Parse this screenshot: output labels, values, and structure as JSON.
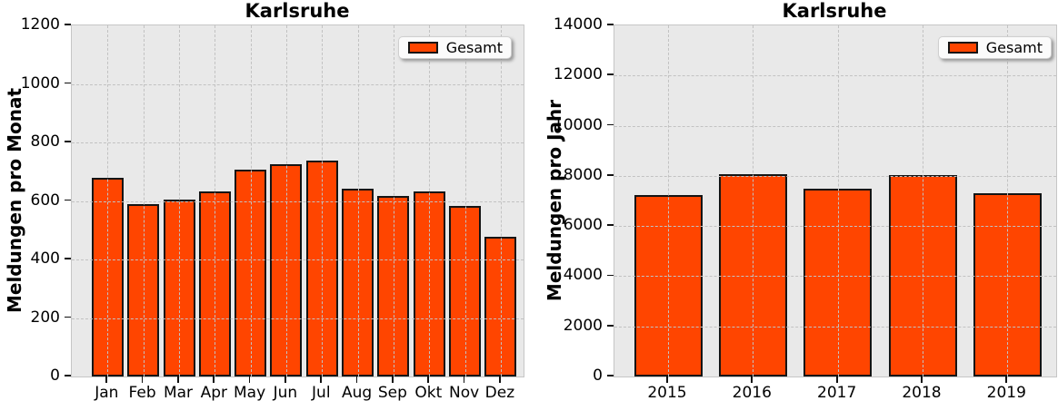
{
  "figure_title": "Karlsruhe",
  "colors": {
    "bar_fill": "#ff4500",
    "bar_edge": "#141414",
    "plot_background": "#e9e9e9",
    "grid": "#c2c2c2",
    "spine": "#c6c6c6",
    "text": "#000000",
    "legend_background": "#fbfbfb"
  },
  "chart_data": [
    {
      "type": "bar",
      "title": "Karlsruhe",
      "xlabel": "",
      "ylabel": "Meldungen pro Monat",
      "categories": [
        "Jan",
        "Feb",
        "Mar",
        "Apr",
        "May",
        "Jun",
        "Jul",
        "Aug",
        "Sep",
        "Okt",
        "Nov",
        "Dez"
      ],
      "values": [
        680,
        589,
        606,
        632,
        706,
        727,
        738,
        642,
        616,
        633,
        583,
        477
      ],
      "ylim": [
        0,
        1200
      ],
      "ytick_step": 200,
      "ytick_labels": [
        "0",
        "200",
        "400",
        "600",
        "800",
        "1000",
        "1200"
      ],
      "grid": "dashed, drawn above bars",
      "legend": {
        "label": "Gesamt",
        "position": "upper right"
      }
    },
    {
      "type": "bar",
      "title": "Karlsruhe",
      "xlabel": "",
      "ylabel": "Meldungen pro Jahr",
      "categories": [
        "2015",
        "2016",
        "2017",
        "2018",
        "2019"
      ],
      "values": [
        7250,
        8080,
        7480,
        8020,
        7310
      ],
      "ylim": [
        0,
        14000
      ],
      "ytick_step": 2000,
      "ytick_labels": [
        "0",
        "2000",
        "4000",
        "6000",
        "8000",
        "10000",
        "12000",
        "14000"
      ],
      "grid": "dashed, drawn above bars",
      "legend": {
        "label": "Gesamt",
        "position": "upper right"
      }
    }
  ]
}
